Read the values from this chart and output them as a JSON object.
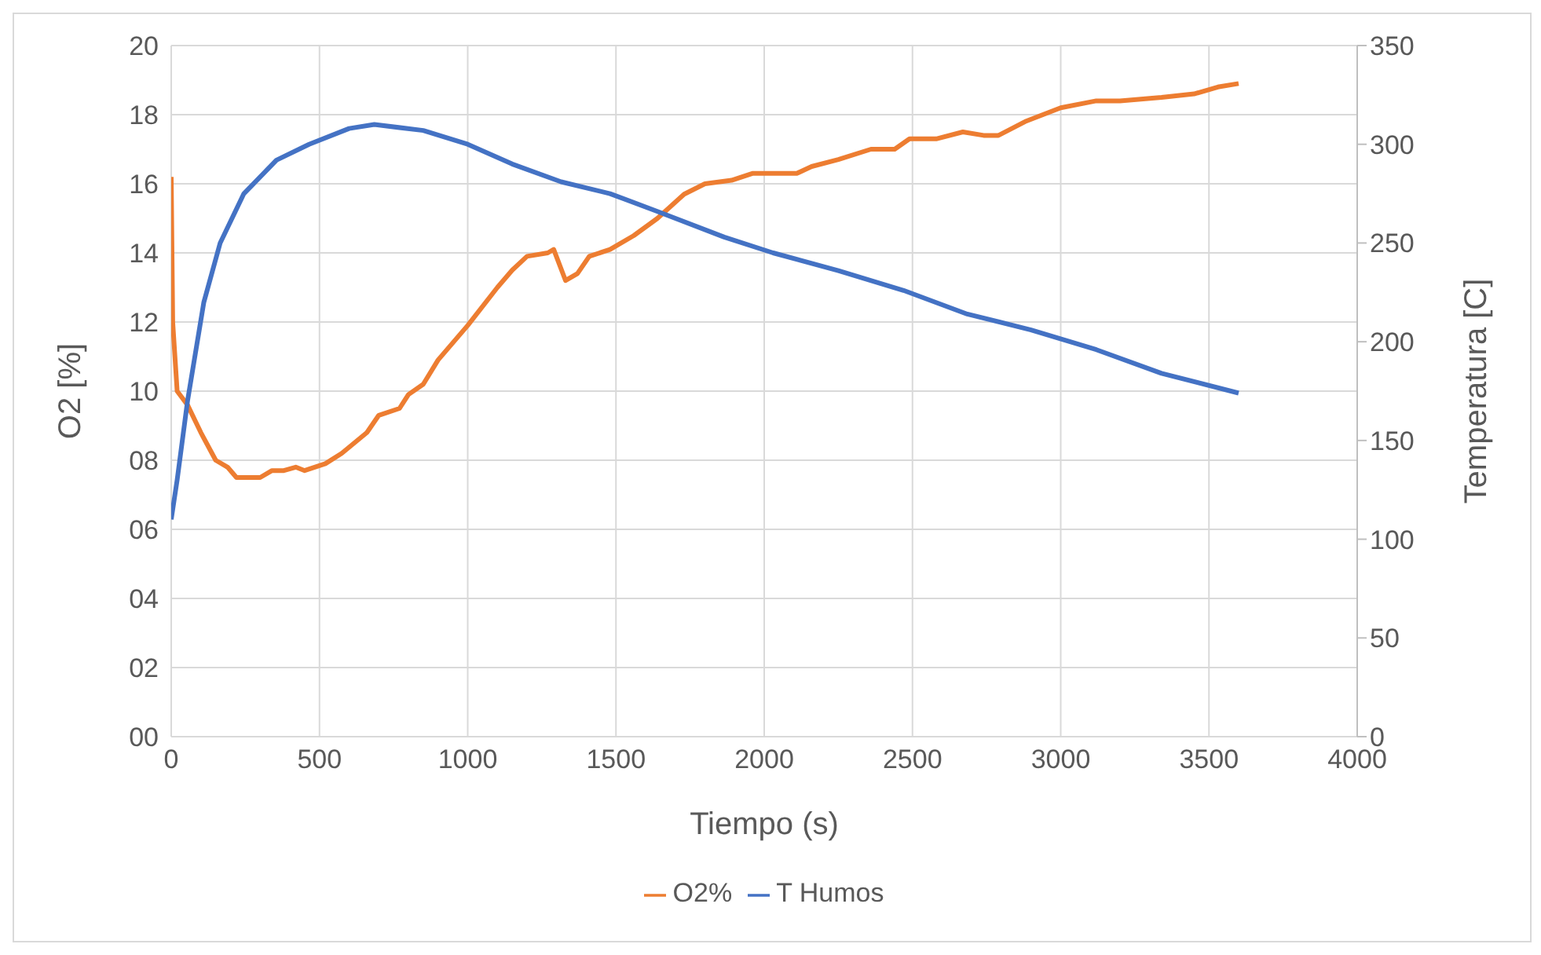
{
  "chart_data": {
    "type": "line",
    "xlabel": "Tiempo (s)",
    "ylabel": "O2 [%]",
    "y2label": "Temperatura [C]",
    "xlim": [
      0,
      4000
    ],
    "xticks": [
      0,
      500,
      1000,
      1500,
      2000,
      2500,
      3000,
      3500,
      4000
    ],
    "ylim": [
      0,
      20
    ],
    "yticks": [
      {
        "value": 0,
        "label": "00"
      },
      {
        "value": 2,
        "label": "02"
      },
      {
        "value": 4,
        "label": "04"
      },
      {
        "value": 6,
        "label": "06"
      },
      {
        "value": 8,
        "label": "08"
      },
      10,
      12,
      14,
      16,
      18,
      20
    ],
    "y2lim": [
      0,
      350
    ],
    "y2ticks": [
      0,
      50,
      100,
      150,
      200,
      250,
      300,
      350
    ],
    "grid": true,
    "legend": "bottom",
    "marker": "none",
    "line_style": "solid",
    "series": [
      {
        "name": "O2%",
        "color": "#ed7d31",
        "x": [
          0,
          5,
          20,
          55,
          100,
          150,
          190,
          220,
          300,
          340,
          380,
          420,
          450,
          520,
          575,
          660,
          700,
          770,
          800,
          850,
          900,
          1000,
          1100,
          1150,
          1200,
          1270,
          1290,
          1330,
          1370,
          1410,
          1480,
          1560,
          1640,
          1730,
          1800,
          1890,
          1960,
          2020,
          2110,
          2160,
          2250,
          2360,
          2440,
          2490,
          2580,
          2670,
          2740,
          2790,
          2880,
          3000,
          3120,
          3200,
          3340,
          3450,
          3530,
          3600
        ],
        "values": [
          16.2,
          12,
          10.0,
          9.6,
          8.8,
          8.0,
          7.8,
          7.5,
          7.5,
          7.7,
          7.7,
          7.8,
          7.7,
          7.9,
          8.2,
          8.8,
          9.3,
          9.5,
          9.9,
          10.2,
          10.9,
          11.9,
          13.0,
          13.5,
          13.9,
          14.0,
          14.1,
          13.2,
          13.4,
          13.9,
          14.1,
          14.5,
          15.0,
          15.7,
          16.0,
          16.1,
          16.3,
          16.3,
          16.3,
          16.5,
          16.7,
          17.0,
          17.0,
          17.3,
          17.3,
          17.5,
          17.4,
          17.4,
          17.8,
          18.2,
          18.4,
          18.4,
          18.5,
          18.6,
          18.8,
          18.9
        ]
      },
      {
        "name": "T Humos",
        "color": "#4472c4",
        "axis": "y2",
        "x": [
          0,
          20,
          55,
          110,
          165,
          245,
          355,
          465,
          600,
          685,
          850,
          1000,
          1150,
          1315,
          1480,
          1640,
          1865,
          2030,
          2250,
          2470,
          2685,
          2900,
          3120,
          3340,
          3600
        ],
        "values": [
          110,
          130,
          170,
          220,
          250,
          275,
          292,
          300,
          308,
          310,
          307,
          300,
          290,
          281,
          275,
          266,
          253,
          245,
          236,
          226,
          214,
          206,
          196,
          184,
          174
        ]
      }
    ]
  }
}
